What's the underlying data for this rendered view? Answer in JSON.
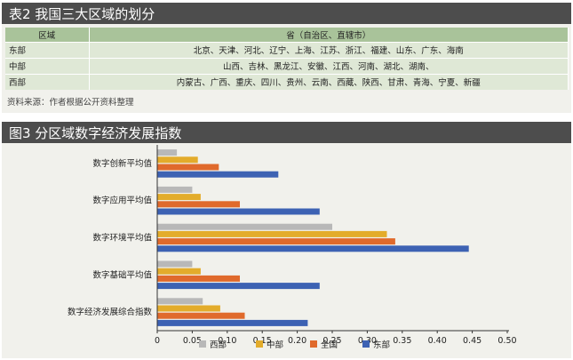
{
  "table_section": {
    "title": "表2  我国三大区域的划分",
    "headers": [
      "区域",
      "省（自治区、直辖市）"
    ],
    "rows": [
      {
        "region": "东部",
        "provinces": "北京、天津、河北、辽宁、上海、江苏、浙江、福建、山东、广东、海南"
      },
      {
        "region": "中部",
        "provinces": "山西、吉林、黑龙江、安徽、江西、河南、湖北、湖南、"
      },
      {
        "region": "西部",
        "provinces": "内蒙古、广西、重庆、四川、贵州、云南、西藏、陕西、甘肃、青海、宁夏、新疆"
      }
    ],
    "source": "资料来源：作者根据公开资料整理"
  },
  "chart_section": {
    "title": "图3  分区域数字经济发展指数"
  },
  "chart_data": {
    "type": "bar",
    "orientation": "horizontal",
    "categories": [
      "数字创新平均值",
      "数字应用平均值",
      "数字环境平均值",
      "数字基础平均值",
      "数字经济发展综合指数"
    ],
    "series": [
      {
        "name": "西部",
        "color": "#b8b8b8",
        "values": [
          0.028,
          0.05,
          0.25,
          0.05,
          0.065
        ]
      },
      {
        "name": "中部",
        "color": "#e3ac2b",
        "values": [
          0.058,
          0.062,
          0.328,
          0.062,
          0.09
        ]
      },
      {
        "name": "全国",
        "color": "#e06a2c",
        "values": [
          0.088,
          0.118,
          0.34,
          0.118,
          0.125
        ]
      },
      {
        "name": "东部",
        "color": "#3d62b3",
        "values": [
          0.173,
          0.232,
          0.445,
          0.232,
          0.215
        ]
      }
    ],
    "xlim": [
      0,
      0.5
    ],
    "xticks": [
      "0",
      "0.05",
      "0.10",
      "0.15",
      "0.20",
      "0.25",
      "0.30",
      "0.35",
      "0.40",
      "0.45",
      "0.50"
    ],
    "grid": false,
    "legend_position": "bottom"
  }
}
